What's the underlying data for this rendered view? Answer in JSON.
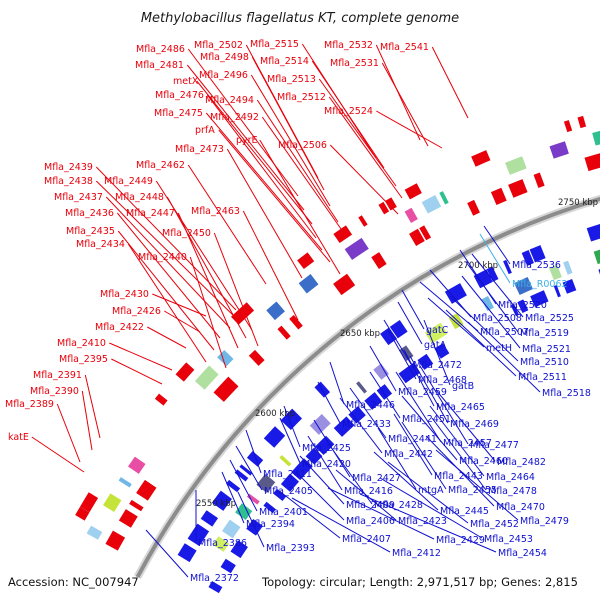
{
  "title": "Methylobacillus flagellatus KT, complete genome",
  "accession": "Accession: NC_007947",
  "topology": "Topology: circular; Length: 2,971,517 bp; Genes: 2,815",
  "colors": {
    "forward_label": "#e8000b",
    "reverse_label": "#1010d0",
    "rna_label": "#3fb0e8",
    "forward_gene": "#e8000b",
    "reverse_gene": "#1a1ae6",
    "backbone": "#8c8c8c"
  },
  "ticks": [
    "2550 kbp",
    "2600 kbp",
    "2650 kbp",
    "2700 kbp",
    "2750 kbp"
  ],
  "forward_labels": [
    "Mfla_2541",
    "Mfla_2532",
    "Mfla_2531",
    "Mfla_2515",
    "Mfla_2514",
    "Mfla_2513",
    "Mfla_2512",
    "Mfla_2524",
    "Mfla_2506",
    "Mfla_2502",
    "Mfla_2498",
    "Mfla_2496",
    "Mfla_2494",
    "Mfla_2492",
    "Mfla_2486",
    "Mfla_2481",
    "metX",
    "Mfla_2476",
    "Mfla_2475",
    "prfA",
    "pyrE",
    "Mfla_2473",
    "Mfla_2462",
    "Mfla_2463",
    "Mfla_2439",
    "Mfla_2438",
    "Mfla_2449",
    "Mfla_2437",
    "Mfla_2448",
    "Mfla_2436",
    "Mfla_2447",
    "Mfla_2435",
    "Mfla_2450",
    "Mfla_2434",
    "Mfla_2440",
    "Mfla_2430",
    "Mfla_2426",
    "Mfla_2422",
    "Mfla_2410",
    "Mfla_2395",
    "Mfla_2391",
    "Mfla_2390",
    "Mfla_2389",
    "katE"
  ],
  "reverse_labels": [
    "Mfla_2536",
    "Mfla_2520",
    "Mfla_2525",
    "Mfla_2508",
    "Mfla_2519",
    "Mfla_2507",
    "Mfla_2521",
    "metH",
    "Mfla_2510",
    "Mfla_2511",
    "Mfla_2518",
    "gatC",
    "gatA",
    "gatB",
    "Mfla_2472",
    "Mfla_2468",
    "Mfla_2459",
    "Mfla_2465",
    "Mfla_2446",
    "Mfla_2451",
    "Mfla_2469",
    "Mfla_2433",
    "Mfla_2441",
    "Mfla_2457",
    "Mfla_2477",
    "Mfla_2442",
    "Mfla_2460",
    "Mfla_2482",
    "Mfla_2425",
    "Mfla_2420",
    "Mfla_2443",
    "Mfla_2464",
    "Mfla_2427",
    "Mfla_2411",
    "Mfla_2416",
    "mtgA",
    "Mfla_2455",
    "Mfla_2478",
    "Mfla_2405",
    "Mfla_2428",
    "Mfla_2401",
    "Mfla_2409",
    "Mfla_2445",
    "Mfla_2470",
    "Mfla_2394",
    "Mfla_2406",
    "Mfla_2423",
    "Mfla_2452",
    "Mfla_2479",
    "Mfla_2407",
    "Mfla_2429",
    "Mfla_2453",
    "Mfla_2386",
    "Mfla_2393",
    "Mfla_2412",
    "Mfla_2454",
    "Mfla_2372"
  ],
  "rna_labels": [
    "Mfla_R0062"
  ]
}
